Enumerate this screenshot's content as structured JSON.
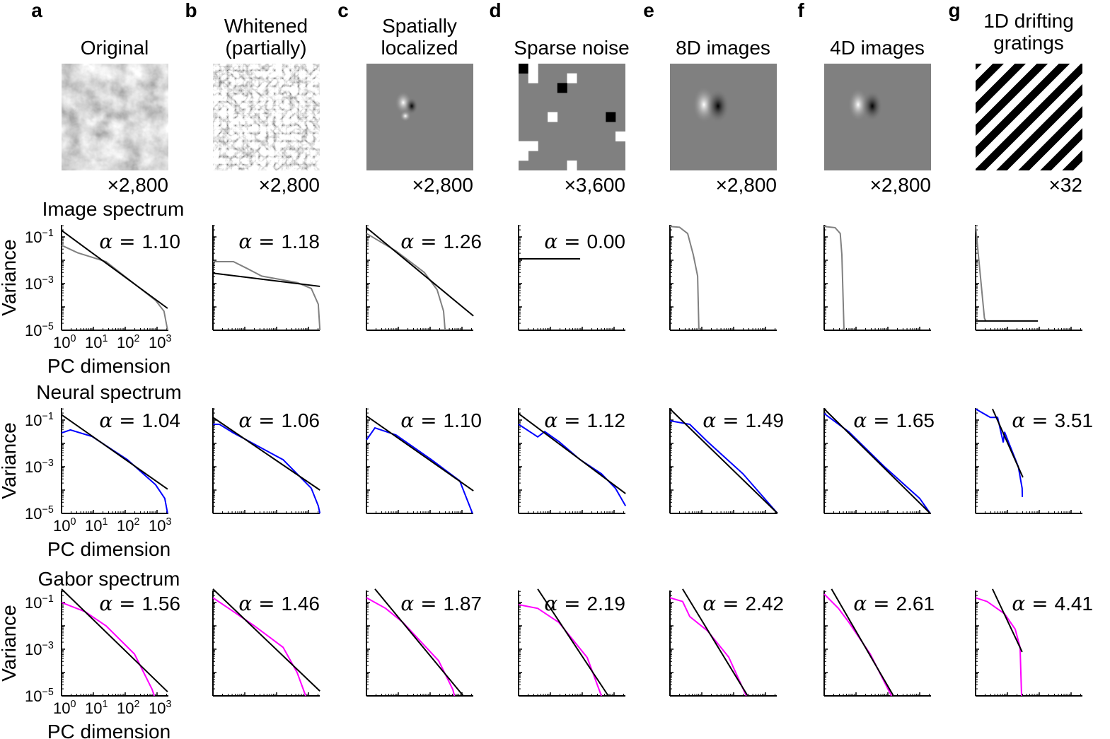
{
  "figure": {
    "row_labels": {
      "image": "Image spectrum",
      "neural": "Neural spectrum",
      "gabor": "Gabor spectrum"
    },
    "xlabel": "PC dimension",
    "ylabel": "Variance",
    "xticks": [
      {
        "base": "10",
        "exp": "0"
      },
      {
        "base": "10",
        "exp": "1"
      },
      {
        "base": "10",
        "exp": "2"
      },
      {
        "base": "10",
        "exp": "3"
      }
    ],
    "yticks": [
      {
        "base": "10",
        "exp": "−1"
      },
      {
        "base": "10",
        "exp": "−3"
      },
      {
        "base": "10",
        "exp": "−5"
      }
    ],
    "alpha_prefix": "α = ",
    "colors": {
      "image": "#808080",
      "neural": "#0000ff",
      "gabor": "#ff00ff",
      "fit": "#000000"
    }
  },
  "chart_data": {
    "type": "line",
    "xscale": "log",
    "yscale": "log",
    "xlabel": "PC dimension",
    "ylabel": "Variance",
    "ylim": [
      1e-05,
      0.3
    ],
    "panels": [
      {
        "letter": "a",
        "title": [
          "Original"
        ],
        "count": "×2,800",
        "image": "natural-image",
        "image_spectrum": {
          "alpha": "1.10",
          "fit": [
            [
              1,
              0.19
            ],
            [
              2140,
              8.7e-05
            ]
          ],
          "curve": [
            [
              1,
              0.044
            ],
            [
              3.2,
              0.021
            ],
            [
              25,
              0.0087
            ],
            [
              900,
              0.00019
            ],
            [
              1650,
              6.6e-05
            ],
            [
              2140,
              1e-05
            ]
          ]
        },
        "neural_spectrum": {
          "alpha": "1.04",
          "fit": [
            [
              1,
              0.17
            ],
            [
              2140,
              0.00011
            ]
          ],
          "curve": [
            [
              1,
              0.028
            ],
            [
              1.9,
              0.038
            ],
            [
              9,
              0.02
            ],
            [
              117,
              0.002
            ],
            [
              900,
              0.00017
            ],
            [
              1750,
              4.4e-05
            ],
            [
              2140,
              1e-05
            ]
          ]
        },
        "gabor_spectrum": {
          "alpha": "1.56",
          "fit": [
            [
              1,
              0.38
            ],
            [
              2140,
              1.5e-05
            ]
          ],
          "curve": [
            [
              1,
              0.1
            ],
            [
              5.4,
              0.041
            ],
            [
              25,
              0.01
            ],
            [
              195,
              0.00062
            ],
            [
              700,
              1.9e-05
            ],
            [
              820,
              1e-05
            ]
          ]
        }
      },
      {
        "letter": "b",
        "title": [
          "Whitened",
          "(partially)"
        ],
        "count": "×2,800",
        "image": "whitened-image",
        "image_spectrum": {
          "alpha": "1.18",
          "fit": [
            [
              1,
              0.0028
            ],
            [
              2290,
              0.00076
            ]
          ],
          "curve": [
            [
              1,
              0.0087
            ],
            [
              4.4,
              0.0087
            ],
            [
              12,
              0.0044
            ],
            [
              34,
              0.0021
            ],
            [
              440,
              0.0011
            ],
            [
              1230,
              0.00062
            ],
            [
              2040,
              0.00013
            ],
            [
              2290,
              1e-05
            ]
          ]
        },
        "neural_spectrum": {
          "alpha": "1.06",
          "fit": [
            [
              1,
              0.13
            ],
            [
              2290,
              0.0001
            ]
          ],
          "curve": [
            [
              1,
              0.066
            ],
            [
              1.6,
              0.066
            ],
            [
              4.4,
              0.028
            ],
            [
              9.5,
              0.016
            ],
            [
              160,
              0.002
            ],
            [
              1230,
              0.00012
            ],
            [
              2040,
              2.1e-05
            ],
            [
              2290,
              1e-05
            ]
          ]
        },
        "gabor_spectrum": {
          "alpha": "1.46",
          "fit": [
            [
              1,
              0.38
            ],
            [
              2290,
              1.6e-05
            ]
          ],
          "curve": [
            [
              1,
              0.16
            ],
            [
              4.4,
              0.041
            ],
            [
              20,
              0.01
            ],
            [
              160,
              0.0012
            ],
            [
              440,
              0.0001
            ],
            [
              820,
              1e-05
            ]
          ]
        }
      },
      {
        "letter": "c",
        "title": [
          "Spatially",
          "localized"
        ],
        "count": "×2,800",
        "image": "localized-image",
        "image_spectrum": {
          "alpha": "1.26",
          "fit": [
            [
              1,
              0.25
            ],
            [
              2290,
              4.1e-05
            ]
          ],
          "curve": [
            [
              1,
              0.14
            ],
            [
              8.5,
              0.025
            ],
            [
              66,
              0.003
            ],
            [
              166,
              0.00054
            ],
            [
              265,
              6.6e-05
            ],
            [
              295,
              1e-05
            ]
          ]
        },
        "neural_spectrum": {
          "alpha": "1.10",
          "fit": [
            [
              1,
              0.15
            ],
            [
              2290,
              9.3e-05
            ]
          ],
          "curve": [
            [
              1,
              0.014
            ],
            [
              1.85,
              0.046
            ],
            [
              8.5,
              0.023
            ],
            [
              110,
              0.002
            ],
            [
              850,
              0.00025
            ],
            [
              2140,
              1e-05
            ]
          ]
        },
        "gabor_spectrum": {
          "alpha": "1.87",
          "fit": [
            [
              1.85,
              0.38
            ],
            [
              1100,
              1e-05
            ]
          ],
          "curve": [
            [
              1,
              0.16
            ],
            [
              4,
              0.056
            ],
            [
              14,
              0.014
            ],
            [
              185,
              0.00032
            ],
            [
              515,
              1.9e-05
            ],
            [
              580,
              1e-05
            ]
          ]
        }
      },
      {
        "letter": "d",
        "title": [
          "Sparse noise"
        ],
        "count": "×3,600",
        "image": "sparse-noise",
        "image_spectrum": {
          "alpha": "0.00",
          "fit": [
            [
              1,
              0.0115
            ],
            [
              86,
              0.0115
            ]
          ],
          "curve": []
        },
        "neural_spectrum": {
          "alpha": "1.12",
          "fit": [
            [
              1,
              0.19
            ],
            [
              2290,
              7.1e-05
            ]
          ],
          "curve": [
            [
              1,
              0.066
            ],
            [
              4,
              0.019
            ],
            [
              6.6,
              0.032
            ],
            [
              18.5,
              0.012
            ],
            [
              86,
              0.002
            ],
            [
              400,
              0.0005
            ],
            [
              1100,
              0.00012
            ],
            [
              2290,
              2.1e-05
            ]
          ]
        },
        "gabor_spectrum": {
          "alpha": "2.19",
          "fit": [
            [
              4,
              0.38
            ],
            [
              660,
              1e-05
            ]
          ],
          "curve": [
            [
              1,
              0.081
            ],
            [
              4,
              0.056
            ],
            [
              18.5,
              0.014
            ],
            [
              143,
              0.00044
            ],
            [
              400,
              1e-05
            ]
          ]
        }
      },
      {
        "letter": "e",
        "title": [
          "8D images"
        ],
        "count": "×2,800",
        "image": "8d-image",
        "image_spectrum": {
          "curve": [
            [
              1,
              0.28
            ],
            [
              2,
              0.26
            ],
            [
              3.6,
              0.14
            ],
            [
              5.4,
              0.017
            ],
            [
              7.4,
              0.0021
            ],
            [
              8.1,
              1e-05
            ]
          ]
        },
        "neural_spectrum": {
          "alpha": "1.49",
          "fit": [
            [
              1,
              0.3
            ],
            [
              2400,
              1e-05
            ]
          ],
          "curve": [
            [
              1,
              0.093
            ],
            [
              4.2,
              0.066
            ],
            [
              15,
              0.012
            ],
            [
              195,
              0.0005
            ],
            [
              2400,
              1e-05
            ]
          ]
        },
        "gabor_spectrum": {
          "alpha": "2.42",
          "fit": [
            [
              2.5,
              0.38
            ],
            [
              277,
              1e-05
            ]
          ],
          "curve": [
            [
              1,
              0.16
            ],
            [
              2.5,
              0.11
            ],
            [
              4.2,
              0.025
            ],
            [
              15,
              0.0062
            ],
            [
              70,
              0.00046
            ],
            [
              250,
              1e-05
            ]
          ]
        }
      },
      {
        "letter": "f",
        "title": [
          "4D images"
        ],
        "count": "×2,800",
        "image": "4d-image",
        "image_spectrum": {
          "curve": [
            [
              1,
              0.28
            ],
            [
              2.2,
              0.25
            ],
            [
              3.2,
              0.14
            ],
            [
              3.6,
              0.017
            ],
            [
              4.2,
              1e-05
            ]
          ]
        },
        "neural_spectrum": {
          "alpha": "1.65",
          "fit": [
            [
              1,
              0.3
            ],
            [
              2140,
              1e-05
            ]
          ],
          "curve": [
            [
              1,
              0.19
            ],
            [
              6,
              0.031
            ],
            [
              78,
              0.001
            ],
            [
              1000,
              4.4e-05
            ],
            [
              2140,
              1e-05
            ]
          ]
        },
        "gabor_spectrum": {
          "alpha": "2.61",
          "fit": [
            [
              1.7,
              0.38
            ],
            [
              150,
              1e-05
            ]
          ],
          "curve": [
            [
              1,
              0.23
            ],
            [
              2.8,
              0.056
            ],
            [
              6,
              0.014
            ],
            [
              28,
              0.00062
            ],
            [
              130,
              1e-05
            ]
          ]
        }
      },
      {
        "letter": "g",
        "title": [
          "1D drifting",
          "gratings"
        ],
        "count": "×32",
        "image": "drifting-gratings",
        "image_spectrum": {
          "fit": [
            [
              1,
              2.5e-05
            ],
            [
              91,
              2.5e-05
            ]
          ],
          "curve": [
            [
              1,
              0.3
            ],
            [
              1.9,
              3.3e-05
            ],
            [
              2.1,
              2.5e-05
            ]
          ]
        },
        "neural_spectrum": {
          "alpha": "3.51",
          "fit": [
            [
              3.4,
              0.3
            ],
            [
              30.6,
              0.00035
            ]
          ],
          "curve": [
            [
              1,
              0.3
            ],
            [
              2.9,
              0.13
            ],
            [
              4.9,
              0.13
            ],
            [
              7.4,
              0.011
            ],
            [
              8.1,
              0.031
            ],
            [
              22,
              0.001
            ],
            [
              29,
              0.00012
            ],
            [
              29.5,
              5e-05
            ]
          ]
        },
        "gabor_spectrum": {
          "alpha": "4.41",
          "fit": [
            [
              3.4,
              0.38
            ],
            [
              29,
              0.00076
            ]
          ],
          "curve": [
            [
              1,
              0.16
            ],
            [
              2.3,
              0.11
            ],
            [
              8.1,
              0.033
            ],
            [
              17.6,
              0.0072
            ],
            [
              25,
              0.0012
            ],
            [
              27.8,
              1e-05
            ]
          ]
        }
      }
    ]
  }
}
